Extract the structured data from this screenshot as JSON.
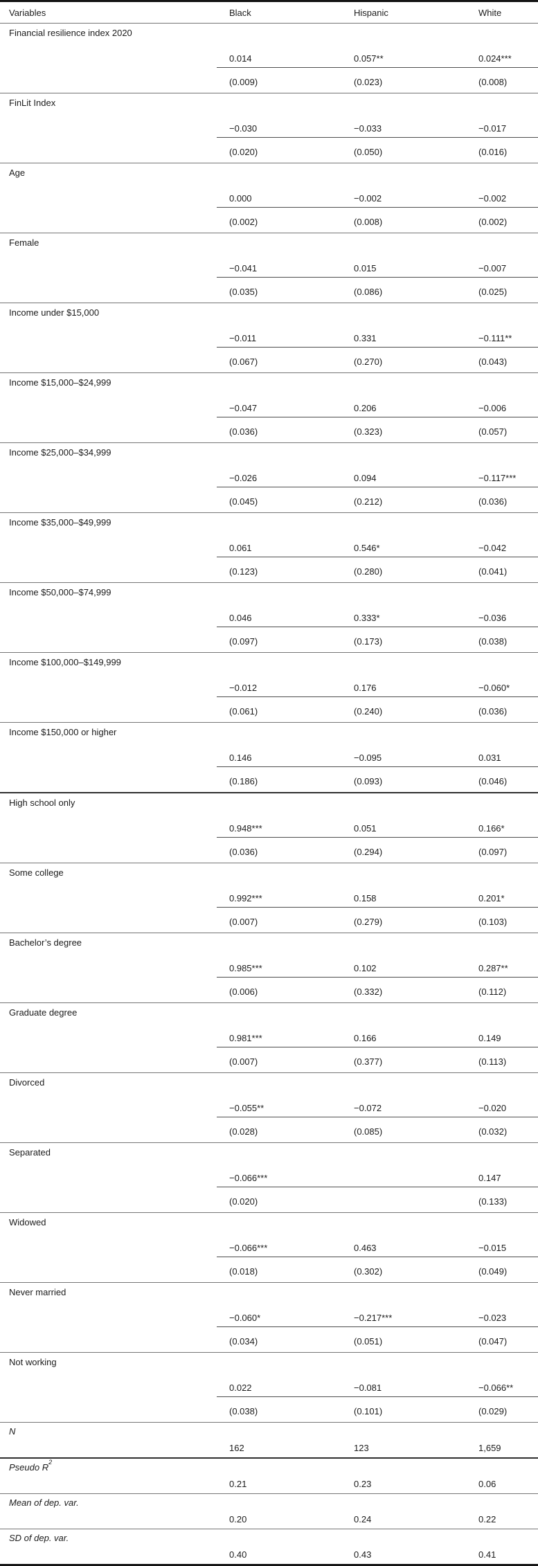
{
  "table": {
    "columns": [
      "Variables",
      "Black",
      "Hispanic",
      "White"
    ],
    "rows": [
      {
        "label": "Financial resilience index 2020",
        "coef": [
          "0.014",
          "0.057**",
          "0.024***"
        ],
        "se": [
          "(0.009)",
          "(0.023)",
          "(0.008)"
        ]
      },
      {
        "label": "FinLit Index",
        "coef": [
          "−0.030",
          "−0.033",
          "−0.017"
        ],
        "se": [
          "(0.020)",
          "(0.050)",
          "(0.016)"
        ]
      },
      {
        "label": "Age",
        "coef": [
          "0.000",
          "−0.002",
          "−0.002"
        ],
        "se": [
          "(0.002)",
          "(0.008)",
          "(0.002)"
        ]
      },
      {
        "label": "Female",
        "coef": [
          "−0.041",
          "0.015",
          "−0.007"
        ],
        "se": [
          "(0.035)",
          "(0.086)",
          "(0.025)"
        ]
      },
      {
        "label": "Income under $15,000",
        "coef": [
          "−0.011",
          "0.331",
          "−0.111**"
        ],
        "se": [
          "(0.067)",
          "(0.270)",
          "(0.043)"
        ]
      },
      {
        "label": "Income $15,000–$24,999",
        "coef": [
          "−0.047",
          "0.206",
          "−0.006"
        ],
        "se": [
          "(0.036)",
          "(0.323)",
          "(0.057)"
        ]
      },
      {
        "label": "Income $25,000–$34,999",
        "coef": [
          "−0.026",
          "0.094",
          "−0.117***"
        ],
        "se": [
          "(0.045)",
          "(0.212)",
          "(0.036)"
        ]
      },
      {
        "label": "Income $35,000–$49,999",
        "coef": [
          "0.061",
          "0.546*",
          "−0.042"
        ],
        "se": [
          "(0.123)",
          "(0.280)",
          "(0.041)"
        ]
      },
      {
        "label": "Income $50,000–$74,999",
        "coef": [
          "0.046",
          "0.333*",
          "−0.036"
        ],
        "se": [
          "(0.097)",
          "(0.173)",
          "(0.038)"
        ]
      },
      {
        "label": "Income $100,000–$149,999",
        "coef": [
          "−0.012",
          "0.176",
          "−0.060*"
        ],
        "se": [
          "(0.061)",
          "(0.240)",
          "(0.036)"
        ]
      },
      {
        "label": "Income $150,000 or higher",
        "coef": [
          "0.146",
          "−0.095",
          "0.031"
        ],
        "se": [
          "(0.186)",
          "(0.093)",
          "(0.046)"
        ]
      },
      {
        "label": "High school only",
        "thick_top": true,
        "coef": [
          "0.948***",
          "0.051",
          "0.166*"
        ],
        "se": [
          "(0.036)",
          "(0.294)",
          "(0.097)"
        ]
      },
      {
        "label": "Some college",
        "coef": [
          "0.992***",
          "0.158",
          "0.201*"
        ],
        "se": [
          "(0.007)",
          "(0.279)",
          "(0.103)"
        ]
      },
      {
        "label": "Bachelor’s degree",
        "coef": [
          "0.985***",
          "0.102",
          "0.287**"
        ],
        "se": [
          "(0.006)",
          "(0.332)",
          "(0.112)"
        ]
      },
      {
        "label": "Graduate degree",
        "coef": [
          "0.981***",
          "0.166",
          "0.149"
        ],
        "se": [
          "(0.007)",
          "(0.377)",
          "(0.113)"
        ]
      },
      {
        "label": "Divorced",
        "coef": [
          "−0.055**",
          "−0.072",
          "−0.020"
        ],
        "se": [
          "(0.028)",
          "(0.085)",
          "(0.032)"
        ]
      },
      {
        "label": "Separated",
        "coef": [
          "−0.066***",
          "",
          "0.147"
        ],
        "se": [
          "(0.020)",
          "",
          "(0.133)"
        ]
      },
      {
        "label": "Widowed",
        "coef": [
          "−0.066***",
          "0.463",
          "−0.015"
        ],
        "se": [
          "(0.018)",
          "(0.302)",
          "(0.049)"
        ]
      },
      {
        "label": "Never married",
        "coef": [
          "−0.060*",
          "−0.217***",
          "−0.023"
        ],
        "se": [
          "(0.034)",
          "(0.051)",
          "(0.047)"
        ]
      },
      {
        "label": "Not working",
        "coef": [
          "0.022",
          "−0.081",
          "−0.066**"
        ],
        "se": [
          "(0.038)",
          "(0.101)",
          "(0.029)"
        ]
      }
    ],
    "summary": [
      {
        "label": "N",
        "sup": "",
        "values": [
          "162",
          "123",
          "1,659"
        ]
      },
      {
        "label": "Pseudo R",
        "sup": "2",
        "thick_top": true,
        "values": [
          "0.21",
          "0.23",
          "0.06"
        ]
      },
      {
        "label": "Mean of dep. var.",
        "sup": "",
        "values": [
          "0.20",
          "0.24",
          "0.22"
        ]
      },
      {
        "label": "SD of dep. var.",
        "sup": "",
        "values": [
          "0.40",
          "0.43",
          "0.41"
        ]
      }
    ]
  }
}
